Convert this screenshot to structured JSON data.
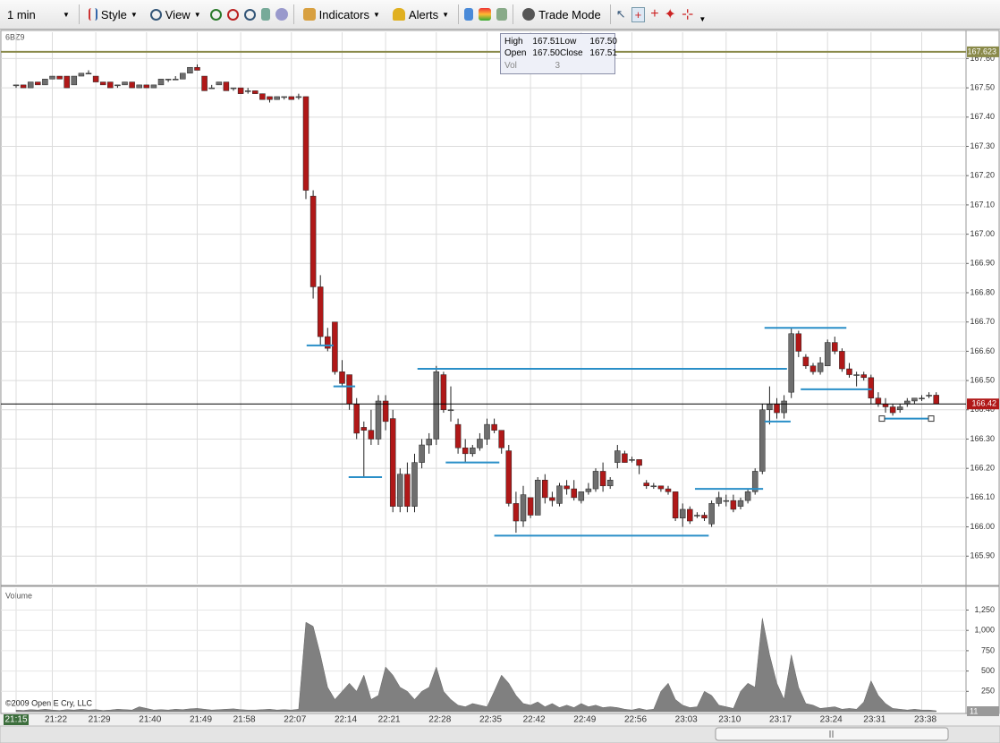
{
  "toolbar": {
    "interval": "1 min",
    "buttons": [
      "Style",
      "View",
      "Indicators",
      "Alerts",
      "Trade Mode"
    ]
  },
  "symbol": "6BZ9",
  "tooltip": {
    "fields": [
      {
        "label": "High",
        "value": "167.51"
      },
      {
        "label": "Low",
        "value": "167.50"
      },
      {
        "label": "Open",
        "value": "167.50"
      },
      {
        "label": "Close",
        "value": "167.51"
      },
      {
        "label": "Vol",
        "value": "3"
      }
    ]
  },
  "copyright": "©2009 Open E Cry, LLC",
  "chart_data": [
    {
      "type": "candlestick",
      "up_color": "#6e6e6e",
      "down_color": "#b01818",
      "grid": true,
      "ylim": [
        165.806,
        167.69
      ],
      "yticks": [
        {
          "value": 167.6,
          "label": "167.60"
        },
        {
          "value": 167.5,
          "label": "167.50"
        },
        {
          "value": 167.4,
          "label": "167.40"
        },
        {
          "value": 167.3,
          "label": "167.30"
        },
        {
          "value": 167.2,
          "label": "167.20"
        },
        {
          "value": 167.1,
          "label": "167.10"
        },
        {
          "value": 167.0,
          "label": "167.00"
        },
        {
          "value": 166.9,
          "label": "166.90"
        },
        {
          "value": 166.8,
          "label": "166.80"
        },
        {
          "value": 166.7,
          "label": "166.70"
        },
        {
          "value": 166.6,
          "label": "166.60"
        },
        {
          "value": 166.5,
          "label": "166.50"
        },
        {
          "value": 166.4,
          "label": "166.40"
        },
        {
          "value": 166.3,
          "label": "166.30"
        },
        {
          "value": 166.2,
          "label": "166.20"
        },
        {
          "value": 166.1,
          "label": "166.10"
        },
        {
          "value": 166.0,
          "label": "166.00"
        },
        {
          "value": 165.9,
          "label": "165.90"
        }
      ],
      "reference_lines": [
        {
          "value": 167.623,
          "label": "167.623",
          "color": "#8a8a4a"
        },
        {
          "value": 166.42,
          "label": "166.42",
          "color": "#000000",
          "label_color": "#b01818"
        }
      ],
      "levels_color": "#2a8fc8",
      "levels": [
        {
          "from": 40.1,
          "to": 43.8,
          "value": 166.62
        },
        {
          "from": 43.8,
          "to": 46.8,
          "value": 166.48
        },
        {
          "from": 45.9,
          "to": 50.5,
          "value": 166.17
        },
        {
          "from": 55.4,
          "to": 106.4,
          "value": 166.54
        },
        {
          "from": 59.3,
          "to": 66.7,
          "value": 166.22
        },
        {
          "from": 66.0,
          "to": 95.6,
          "value": 165.97
        },
        {
          "from": 93.7,
          "to": 103.1,
          "value": 166.13
        },
        {
          "from": 103.3,
          "to": 114.6,
          "value": 166.68
        },
        {
          "from": 103.3,
          "to": 106.9,
          "value": 166.36
        },
        {
          "from": 108.3,
          "to": 118.1,
          "value": 166.47
        },
        {
          "from": 119.5,
          "to": 126.3,
          "value": 166.37
        }
      ],
      "ohlc": [
        [
          167.51,
          167.51,
          167.5,
          167.51
        ],
        [
          167.51,
          167.51,
          167.5,
          167.5
        ],
        [
          167.5,
          167.52,
          167.5,
          167.52
        ],
        [
          167.52,
          167.52,
          167.51,
          167.51
        ],
        [
          167.51,
          167.53,
          167.51,
          167.53
        ],
        [
          167.53,
          167.54,
          167.53,
          167.54
        ],
        [
          167.54,
          167.54,
          167.53,
          167.53
        ],
        [
          167.54,
          167.54,
          167.5,
          167.5
        ],
        [
          167.51,
          167.54,
          167.51,
          167.54
        ],
        [
          167.54,
          167.55,
          167.54,
          167.55
        ],
        [
          167.55,
          167.56,
          167.55,
          167.55
        ],
        [
          167.54,
          167.54,
          167.52,
          167.52
        ],
        [
          167.52,
          167.52,
          167.51,
          167.51
        ],
        [
          167.52,
          167.52,
          167.5,
          167.5
        ],
        [
          167.51,
          167.51,
          167.5,
          167.51
        ],
        [
          167.51,
          167.52,
          167.51,
          167.52
        ],
        [
          167.52,
          167.52,
          167.5,
          167.5
        ],
        [
          167.5,
          167.51,
          167.5,
          167.51
        ],
        [
          167.51,
          167.51,
          167.5,
          167.5
        ],
        [
          167.5,
          167.51,
          167.5,
          167.51
        ],
        [
          167.51,
          167.53,
          167.51,
          167.53
        ],
        [
          167.53,
          167.53,
          167.52,
          167.53
        ],
        [
          167.53,
          167.54,
          167.53,
          167.53
        ],
        [
          167.53,
          167.55,
          167.53,
          167.55
        ],
        [
          167.55,
          167.57,
          167.55,
          167.57
        ],
        [
          167.57,
          167.58,
          167.56,
          167.56
        ],
        [
          167.54,
          167.54,
          167.49,
          167.49
        ],
        [
          167.5,
          167.51,
          167.5,
          167.5
        ],
        [
          167.51,
          167.52,
          167.51,
          167.52
        ],
        [
          167.52,
          167.52,
          167.49,
          167.49
        ],
        [
          167.5,
          167.5,
          167.49,
          167.5
        ],
        [
          167.5,
          167.5,
          167.48,
          167.48
        ],
        [
          167.49,
          167.5,
          167.48,
          167.49
        ],
        [
          167.49,
          167.49,
          167.48,
          167.48
        ],
        [
          167.48,
          167.48,
          167.46,
          167.46
        ],
        [
          167.47,
          167.47,
          167.45,
          167.46
        ],
        [
          167.46,
          167.47,
          167.46,
          167.47
        ],
        [
          167.47,
          167.47,
          167.46,
          167.47
        ],
        [
          167.47,
          167.47,
          167.46,
          167.46
        ],
        [
          167.47,
          167.48,
          167.46,
          167.47
        ],
        [
          167.47,
          167.47,
          167.12,
          167.15
        ],
        [
          167.13,
          167.15,
          166.78,
          166.82
        ],
        [
          166.82,
          166.86,
          166.62,
          166.65
        ],
        [
          166.65,
          166.68,
          166.6,
          166.61
        ],
        [
          166.7,
          166.7,
          166.52,
          166.53
        ],
        [
          166.53,
          166.57,
          166.48,
          166.49
        ],
        [
          166.52,
          166.52,
          166.4,
          166.42
        ],
        [
          166.42,
          166.44,
          166.3,
          166.32
        ],
        [
          166.34,
          166.36,
          166.17,
          166.33
        ],
        [
          166.33,
          166.4,
          166.28,
          166.3
        ],
        [
          166.3,
          166.45,
          166.28,
          166.43
        ],
        [
          166.43,
          166.45,
          166.33,
          166.36
        ],
        [
          166.37,
          166.4,
          166.05,
          166.07
        ],
        [
          166.07,
          166.2,
          166.05,
          166.18
        ],
        [
          166.18,
          166.22,
          166.05,
          166.07
        ],
        [
          166.07,
          166.25,
          166.05,
          166.22
        ],
        [
          166.22,
          166.3,
          166.2,
          166.28
        ],
        [
          166.28,
          166.32,
          166.25,
          166.3
        ],
        [
          166.3,
          166.55,
          166.28,
          166.53
        ],
        [
          166.52,
          166.53,
          166.39,
          166.4
        ],
        [
          166.4,
          166.48,
          166.36,
          166.4
        ],
        [
          166.35,
          166.37,
          166.25,
          166.27
        ],
        [
          166.27,
          166.3,
          166.22,
          166.25
        ],
        [
          166.25,
          166.28,
          166.24,
          166.27
        ],
        [
          166.27,
          166.32,
          166.26,
          166.3
        ],
        [
          166.3,
          166.37,
          166.28,
          166.35
        ],
        [
          166.35,
          166.37,
          166.32,
          166.33
        ],
        [
          166.33,
          166.33,
          166.25,
          166.27
        ],
        [
          166.26,
          166.28,
          166.07,
          166.08
        ],
        [
          166.08,
          166.12,
          165.98,
          166.02
        ],
        [
          166.02,
          166.14,
          166.0,
          166.11
        ],
        [
          166.1,
          166.1,
          166.03,
          166.04
        ],
        [
          166.04,
          166.17,
          166.04,
          166.16
        ],
        [
          166.16,
          166.18,
          166.08,
          166.1
        ],
        [
          166.1,
          166.12,
          166.07,
          166.09
        ],
        [
          166.08,
          166.15,
          166.07,
          166.14
        ],
        [
          166.14,
          166.16,
          166.11,
          166.13
        ],
        [
          166.13,
          166.16,
          166.09,
          166.1
        ],
        [
          166.09,
          166.12,
          166.08,
          166.12
        ],
        [
          166.12,
          166.15,
          166.11,
          166.13
        ],
        [
          166.13,
          166.2,
          166.12,
          166.19
        ],
        [
          166.19,
          166.22,
          166.12,
          166.14
        ],
        [
          166.14,
          166.17,
          166.13,
          166.16
        ],
        [
          166.22,
          166.28,
          166.2,
          166.26
        ],
        [
          166.25,
          166.26,
          166.22,
          166.22
        ],
        [
          166.23,
          166.24,
          166.22,
          166.23
        ],
        [
          166.23,
          166.23,
          166.18,
          166.21
        ],
        [
          166.15,
          166.16,
          166.13,
          166.14
        ],
        [
          166.14,
          166.15,
          166.13,
          166.14
        ],
        [
          166.14,
          166.14,
          166.12,
          166.13
        ],
        [
          166.13,
          166.14,
          166.11,
          166.12
        ],
        [
          166.12,
          166.12,
          166.02,
          166.03
        ],
        [
          166.03,
          166.08,
          166.0,
          166.06
        ],
        [
          166.06,
          166.07,
          166.01,
          166.02
        ],
        [
          166.04,
          166.05,
          166.03,
          166.04
        ],
        [
          166.04,
          166.05,
          166.02,
          166.03
        ],
        [
          166.01,
          166.09,
          166.0,
          166.08
        ],
        [
          166.08,
          166.12,
          166.07,
          166.1
        ],
        [
          166.09,
          166.11,
          166.07,
          166.09
        ],
        [
          166.09,
          166.11,
          166.05,
          166.06
        ],
        [
          166.07,
          166.1,
          166.06,
          166.09
        ],
        [
          166.09,
          166.13,
          166.08,
          166.12
        ],
        [
          166.12,
          166.2,
          166.11,
          166.19
        ],
        [
          166.19,
          166.42,
          166.18,
          166.4
        ],
        [
          166.4,
          166.48,
          166.35,
          166.42
        ],
        [
          166.42,
          166.44,
          166.37,
          166.39
        ],
        [
          166.39,
          166.45,
          166.37,
          166.43
        ],
        [
          166.46,
          166.68,
          166.44,
          166.66
        ],
        [
          166.66,
          166.67,
          166.58,
          166.6
        ],
        [
          166.58,
          166.59,
          166.54,
          166.55
        ],
        [
          166.55,
          166.56,
          166.52,
          166.53
        ],
        [
          166.53,
          166.58,
          166.52,
          166.56
        ],
        [
          166.55,
          166.64,
          166.55,
          166.63
        ],
        [
          166.63,
          166.65,
          166.59,
          166.6
        ],
        [
          166.6,
          166.61,
          166.53,
          166.54
        ],
        [
          166.54,
          166.56,
          166.51,
          166.52
        ],
        [
          166.52,
          166.53,
          166.48,
          166.52
        ],
        [
          166.52,
          166.53,
          166.5,
          166.51
        ],
        [
          166.51,
          166.52,
          166.42,
          166.44
        ],
        [
          166.44,
          166.46,
          166.41,
          166.42
        ],
        [
          166.42,
          166.44,
          166.39,
          166.41
        ],
        [
          166.41,
          166.42,
          166.38,
          166.39
        ],
        [
          166.4,
          166.42,
          166.39,
          166.41
        ],
        [
          166.42,
          166.44,
          166.41,
          166.43
        ],
        [
          166.43,
          166.44,
          166.42,
          166.44
        ],
        [
          166.44,
          166.45,
          166.43,
          166.44
        ],
        [
          166.45,
          166.46,
          166.44,
          166.45
        ],
        [
          166.45,
          166.46,
          166.42,
          166.42
        ]
      ]
    },
    {
      "type": "area",
      "title": "Volume",
      "color": "#808080",
      "grid": true,
      "ylim": [
        0,
        1520
      ],
      "yticks": [
        {
          "value": 1250,
          "label": "1,250"
        },
        {
          "value": 1000,
          "label": "1,000"
        },
        750,
        500,
        250
      ],
      "xticks": [
        {
          "value": 0,
          "label": "21:15"
        },
        {
          "value": 5,
          "label": "21:22"
        },
        {
          "value": 11,
          "label": "21:29"
        },
        {
          "value": 18,
          "label": "21:40"
        },
        {
          "value": 25,
          "label": "21:49"
        },
        {
          "value": 31,
          "label": "21:58"
        },
        {
          "value": 38,
          "label": "22:07"
        },
        {
          "value": 45,
          "label": "22:14"
        },
        {
          "value": 51,
          "label": "22:21"
        },
        {
          "value": 58,
          "label": "22:28"
        },
        {
          "value": 65,
          "label": "22:35"
        },
        {
          "value": 71,
          "label": "22:42"
        },
        {
          "value": 78,
          "label": "22:49"
        },
        {
          "value": 85,
          "label": "22:56"
        },
        {
          "value": 92,
          "label": "23:03"
        },
        {
          "value": 98,
          "label": "23:10"
        },
        {
          "value": 105,
          "label": "23:17"
        },
        {
          "value": 112,
          "label": "23:24"
        },
        {
          "value": 118,
          "label": "23:31"
        },
        {
          "value": 125,
          "label": "23:38"
        }
      ],
      "values": [
        20,
        15,
        25,
        20,
        30,
        20,
        15,
        25,
        20,
        30,
        20,
        25,
        15,
        20,
        30,
        25,
        20,
        60,
        40,
        20,
        25,
        20,
        30,
        25,
        35,
        40,
        30,
        20,
        25,
        30,
        35,
        25,
        20,
        20,
        25,
        30,
        20,
        25,
        20,
        30,
        1100,
        1050,
        700,
        300,
        150,
        250,
        350,
        250,
        450,
        150,
        200,
        550,
        450,
        300,
        250,
        150,
        250,
        300,
        550,
        250,
        150,
        80,
        60,
        100,
        80,
        60,
        250,
        450,
        350,
        200,
        100,
        80,
        120,
        60,
        100,
        50,
        80,
        50,
        100,
        60,
        80,
        50,
        60,
        50,
        30,
        20,
        40,
        20,
        30,
        250,
        350,
        150,
        80,
        50,
        60,
        250,
        200,
        80,
        60,
        40,
        250,
        350,
        300,
        1150,
        700,
        350,
        150,
        700,
        300,
        100,
        80,
        40,
        50,
        60,
        30,
        40,
        30,
        120,
        380,
        200,
        100,
        40,
        30,
        20,
        30,
        20,
        20,
        11
      ]
    }
  ]
}
